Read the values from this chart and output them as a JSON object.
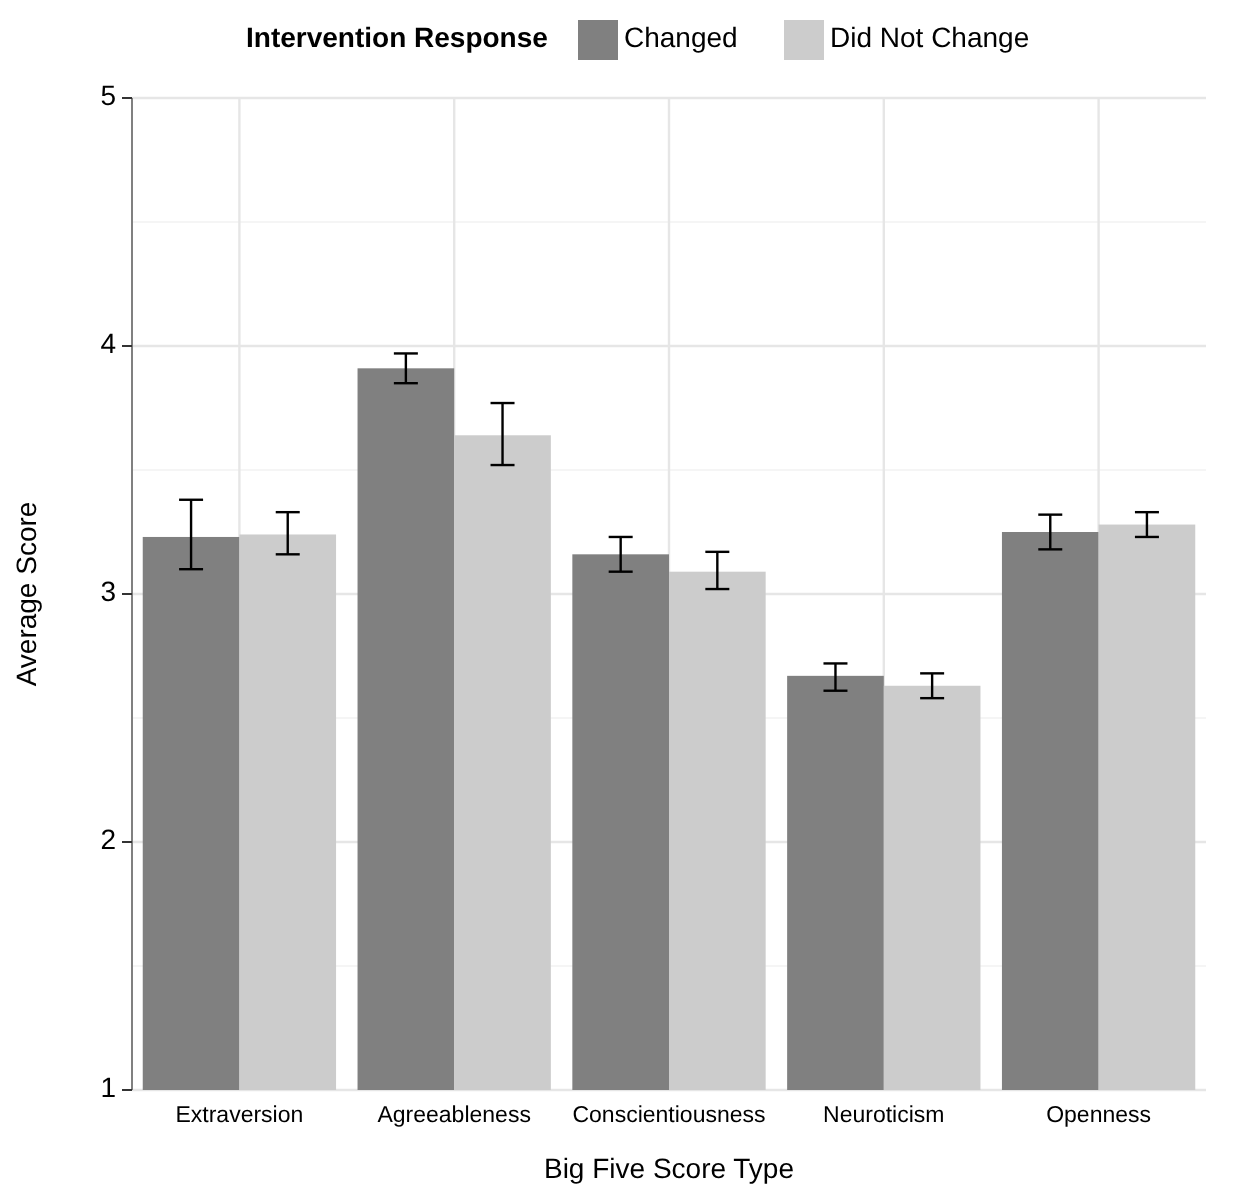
{
  "chart_data": {
    "type": "bar",
    "xlabel": "Big Five Score Type",
    "ylabel": "Average Score",
    "legend_title": "Intervention Response",
    "legend": "top",
    "categories": [
      "Extraversion",
      "Agreeableness",
      "Conscientiousness",
      "Neuroticism",
      "Openness"
    ],
    "series": [
      {
        "name": "Changed",
        "color": "#808080",
        "values": [
          3.23,
          3.91,
          3.16,
          2.67,
          3.25
        ],
        "errors": [
          [
            3.1,
            3.38
          ],
          [
            3.85,
            3.97
          ],
          [
            3.09,
            3.23
          ],
          [
            2.61,
            2.72
          ],
          [
            3.18,
            3.32
          ]
        ]
      },
      {
        "name": "Did Not Change",
        "color": "#cccccc",
        "values": [
          3.24,
          3.64,
          3.09,
          2.63,
          3.28
        ],
        "errors": [
          [
            3.16,
            3.33
          ],
          [
            3.52,
            3.77
          ],
          [
            3.02,
            3.17
          ],
          [
            2.58,
            2.68
          ],
          [
            3.23,
            3.33
          ]
        ]
      }
    ],
    "ylim": [
      1,
      5
    ],
    "yticks": [
      1,
      2,
      3,
      4,
      5
    ],
    "grid": true
  }
}
